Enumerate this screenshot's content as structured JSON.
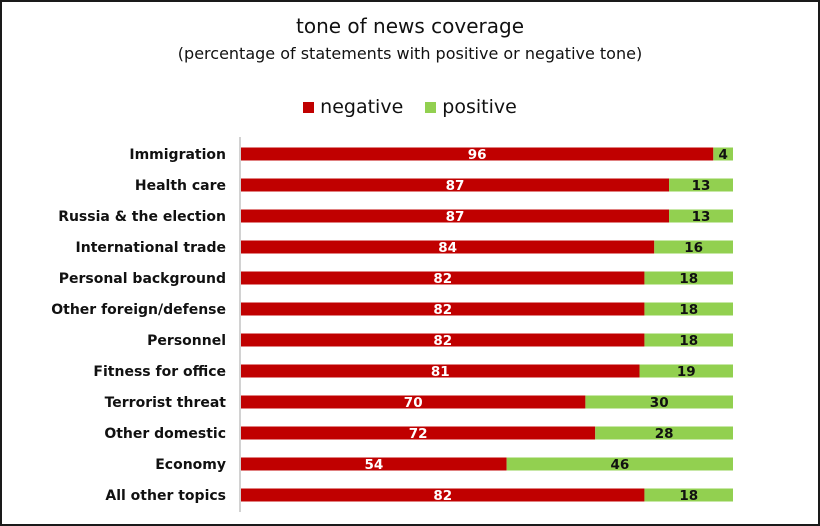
{
  "colors": {
    "negative": "#c00000",
    "positive": "#92d050"
  },
  "chart_data": {
    "type": "bar",
    "stacked": true,
    "orientation": "horizontal",
    "title": "tone of news coverage",
    "subtitle": "(percentage of statements with positive or negative tone)",
    "legend_position": "top",
    "xlim": [
      0,
      100
    ],
    "categories": [
      "Immigration",
      "Health care",
      "Russia & the election",
      "International trade",
      "Personal background",
      "Other foreign/defense",
      "Personnel",
      "Fitness for office",
      "Terrorist threat",
      "Other domestic",
      "Economy",
      "All other topics"
    ],
    "series": [
      {
        "name": "negative",
        "values": [
          96,
          87,
          87,
          84,
          82,
          82,
          82,
          81,
          70,
          72,
          54,
          82
        ]
      },
      {
        "name": "positive",
        "values": [
          4,
          13,
          13,
          16,
          18,
          18,
          18,
          19,
          30,
          28,
          46,
          18
        ]
      }
    ]
  }
}
